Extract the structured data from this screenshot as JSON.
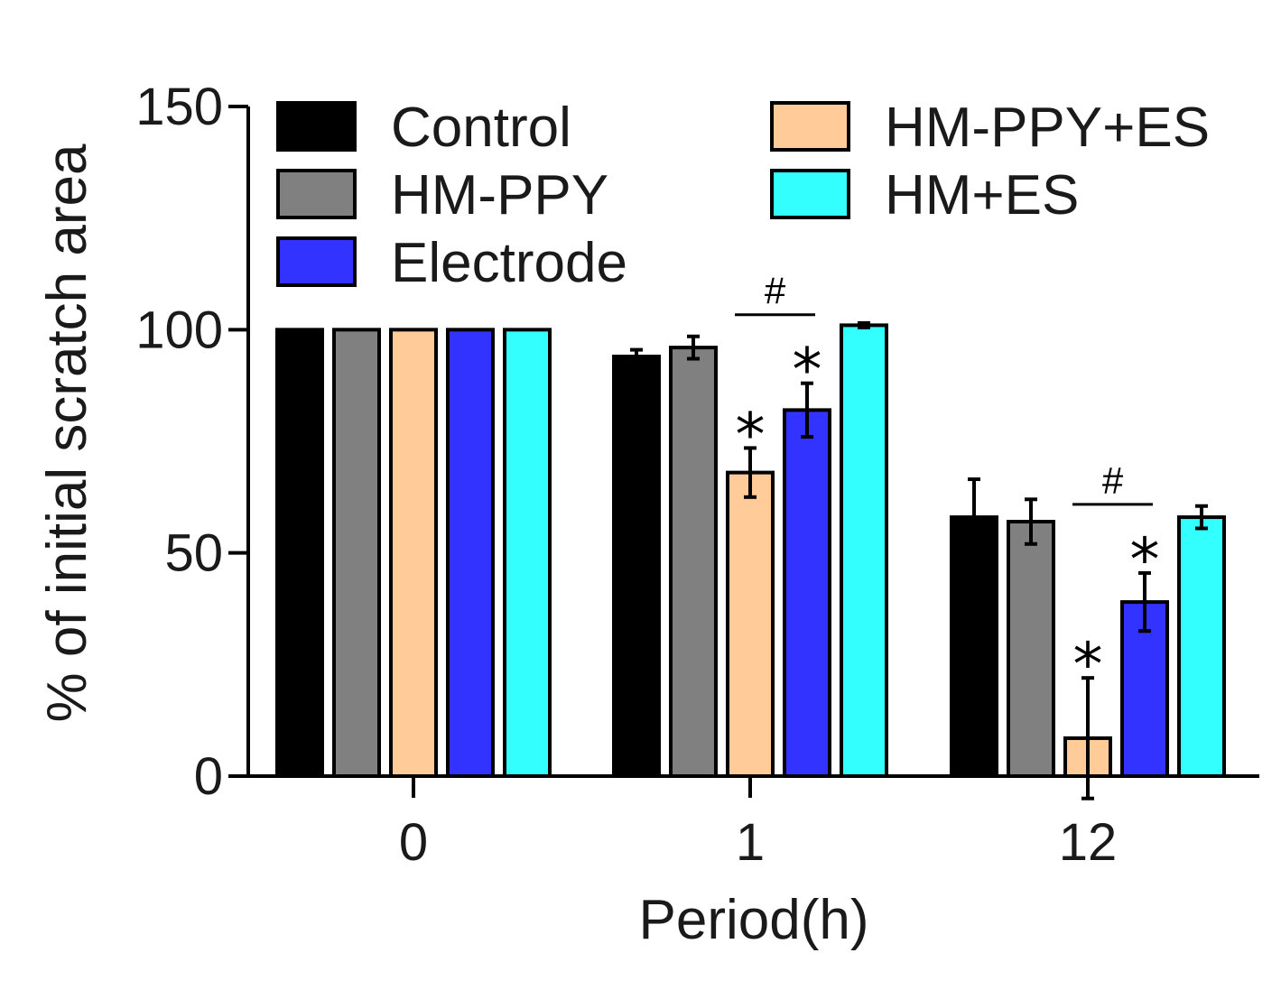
{
  "chart_data": {
    "type": "bar",
    "title": "",
    "xlabel": "Period(h)",
    "ylabel": "% of initial scratch area",
    "categories": [
      "0",
      "1",
      "12"
    ],
    "yticks": [
      "0",
      "50",
      "100",
      "150"
    ],
    "ylim": [
      0,
      150
    ],
    "legend_position": "top",
    "series": [
      {
        "name": "Control",
        "color": "#000000",
        "values": [
          100,
          94,
          58
        ],
        "errors": [
          0,
          1.5,
          8.5
        ]
      },
      {
        "name": "HM-PPY",
        "color": "#808080",
        "values": [
          100,
          96,
          57
        ],
        "errors": [
          0,
          2.5,
          5
        ]
      },
      {
        "name": "HM-PPY+ES",
        "color": "#FFCC99",
        "values": [
          100,
          68,
          8.5
        ],
        "errors": [
          0,
          5.5,
          13.5
        ]
      },
      {
        "name": "Electrode",
        "color": "#3333FF",
        "values": [
          100,
          82,
          39
        ],
        "errors": [
          0,
          6,
          6.5
        ]
      },
      {
        "name": "HM+ES",
        "color": "#33FFFF",
        "values": [
          100,
          101,
          58
        ],
        "errors": [
          0,
          0.5,
          2.5
        ]
      }
    ],
    "legend_order": [
      [
        "Control",
        "HM-PPY+ES"
      ],
      [
        "HM-PPY",
        "HM+ES"
      ],
      [
        "Electrode"
      ]
    ],
    "annotations": {
      "star": "*",
      "hash": "#",
      "stars": [
        {
          "category": "1",
          "series": "HM-PPY+ES"
        },
        {
          "category": "1",
          "series": "Electrode"
        },
        {
          "category": "12",
          "series": "HM-PPY+ES"
        },
        {
          "category": "12",
          "series": "Electrode"
        }
      ],
      "hashes": [
        {
          "category": "1",
          "between": [
            "HM-PPY+ES",
            "Electrode"
          ]
        },
        {
          "category": "12",
          "between": [
            "HM-PPY+ES",
            "Electrode"
          ]
        }
      ]
    }
  }
}
